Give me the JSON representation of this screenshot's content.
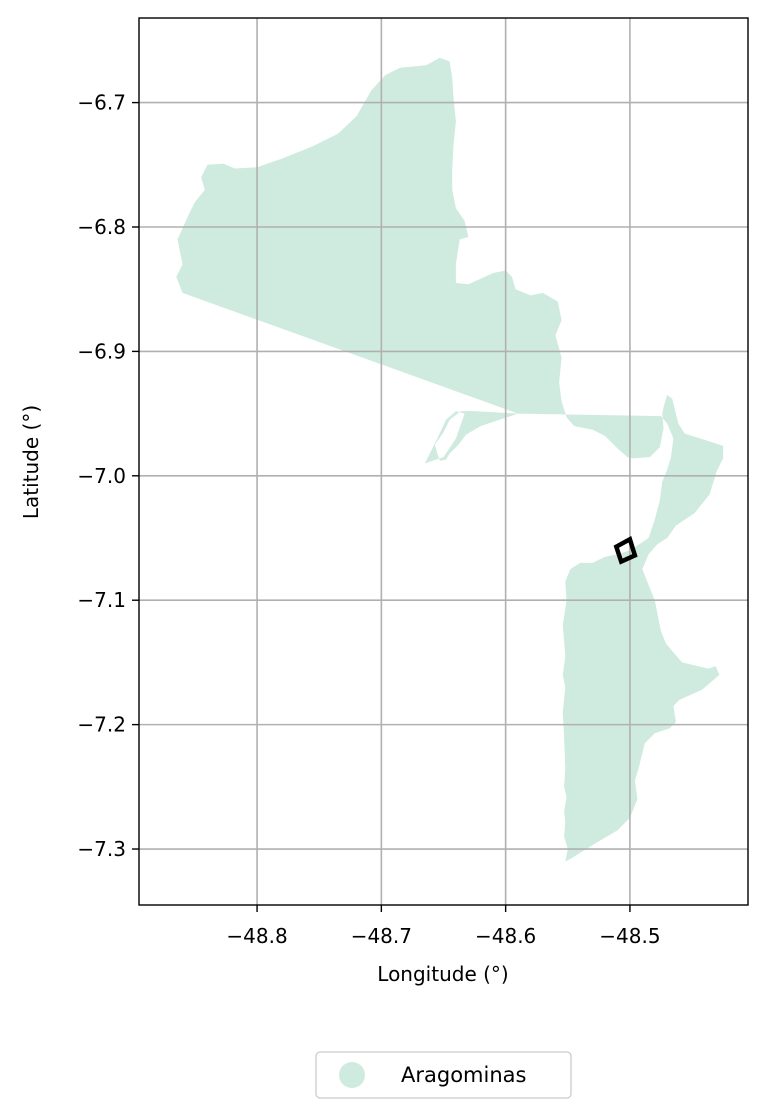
{
  "chart_data": {
    "type": "map",
    "xlabel": "Longitude (°)",
    "ylabel": "Latitude (°)",
    "xlim": [
      -48.895,
      -48.405
    ],
    "ylim": [
      -7.345,
      -6.632
    ],
    "x_ticks": [
      -48.8,
      -48.7,
      -48.6,
      -48.5
    ],
    "y_ticks": [
      -6.7,
      -6.8,
      -6.9,
      -7.0,
      -7.1,
      -7.2,
      -7.3
    ],
    "x_tick_labels": [
      "−48.8",
      "−48.7",
      "−48.6",
      "−48.5"
    ],
    "y_tick_labels": [
      "−6.7",
      "−6.8",
      "−6.9",
      "−7.0",
      "−7.1",
      "−7.2",
      "−7.3"
    ],
    "grid": true,
    "legend_position": "bottom-center",
    "region": {
      "name": "Aragominas",
      "color": "#cfebdf",
      "boundary": [
        [
          -48.86,
          -6.853
        ],
        [
          -48.865,
          -6.84
        ],
        [
          -48.86,
          -6.83
        ],
        [
          -48.864,
          -6.81
        ],
        [
          -48.855,
          -6.79
        ],
        [
          -48.85,
          -6.78
        ],
        [
          -48.842,
          -6.77
        ],
        [
          -48.845,
          -6.76
        ],
        [
          -48.84,
          -6.75
        ],
        [
          -48.827,
          -6.749
        ],
        [
          -48.818,
          -6.753
        ],
        [
          -48.8,
          -6.752
        ],
        [
          -48.78,
          -6.745
        ],
        [
          -48.755,
          -6.735
        ],
        [
          -48.735,
          -6.725
        ],
        [
          -48.72,
          -6.711
        ],
        [
          -48.708,
          -6.69
        ],
        [
          -48.697,
          -6.678
        ],
        [
          -48.685,
          -6.672
        ],
        [
          -48.664,
          -6.67
        ],
        [
          -48.653,
          -6.664
        ],
        [
          -48.645,
          -6.667
        ],
        [
          -48.643,
          -6.68
        ],
        [
          -48.642,
          -6.695
        ],
        [
          -48.64,
          -6.715
        ],
        [
          -48.642,
          -6.735
        ],
        [
          -48.643,
          -6.755
        ],
        [
          -48.643,
          -6.77
        ],
        [
          -48.64,
          -6.785
        ],
        [
          -48.633,
          -6.795
        ],
        [
          -48.63,
          -6.808
        ],
        [
          -48.637,
          -6.81
        ],
        [
          -48.64,
          -6.83
        ],
        [
          -48.64,
          -6.845
        ],
        [
          -48.63,
          -6.846
        ],
        [
          -48.61,
          -6.837
        ],
        [
          -48.6,
          -6.835
        ],
        [
          -48.595,
          -6.84
        ],
        [
          -48.592,
          -6.85
        ],
        [
          -48.58,
          -6.855
        ],
        [
          -48.57,
          -6.853
        ],
        [
          -48.558,
          -6.86
        ],
        [
          -48.555,
          -6.875
        ],
        [
          -48.56,
          -6.887
        ],
        [
          -48.555,
          -6.905
        ],
        [
          -48.557,
          -6.925
        ],
        [
          -48.555,
          -6.94
        ],
        [
          -48.551,
          -6.953
        ],
        [
          -48.545,
          -6.96
        ],
        [
          -48.53,
          -6.963
        ],
        [
          -48.52,
          -6.968
        ],
        [
          -48.51,
          -6.978
        ],
        [
          -48.502,
          -6.985
        ],
        [
          -48.497,
          -6.986
        ],
        [
          -48.484,
          -6.985
        ],
        [
          -48.476,
          -6.977
        ],
        [
          -48.473,
          -6.962
        ],
        [
          -48.474,
          -6.95
        ],
        [
          -48.473,
          -6.945
        ],
        [
          -48.47,
          -6.935
        ],
        [
          -48.466,
          -6.938
        ],
        [
          -48.461,
          -6.958
        ],
        [
          -48.456,
          -6.966
        ],
        [
          -48.437,
          -6.972
        ],
        [
          -48.425,
          -6.976
        ],
        [
          -48.425,
          -6.986
        ],
        [
          -48.43,
          -6.996
        ],
        [
          -48.436,
          -7.015
        ],
        [
          -48.448,
          -7.03
        ],
        [
          -48.463,
          -7.04
        ],
        [
          -48.47,
          -7.05
        ],
        [
          -48.478,
          -7.055
        ],
        [
          -48.485,
          -7.063
        ],
        [
          -48.49,
          -7.075
        ],
        [
          -48.485,
          -7.088
        ],
        [
          -48.48,
          -7.1
        ],
        [
          -48.477,
          -7.115
        ],
        [
          -48.475,
          -7.125
        ],
        [
          -48.471,
          -7.135
        ],
        [
          -48.458,
          -7.15
        ],
        [
          -48.437,
          -7.155
        ],
        [
          -48.431,
          -7.153
        ],
        [
          -48.428,
          -7.16
        ],
        [
          -48.442,
          -7.172
        ],
        [
          -48.46,
          -7.18
        ],
        [
          -48.465,
          -7.185
        ],
        [
          -48.463,
          -7.198
        ],
        [
          -48.468,
          -7.203
        ],
        [
          -48.48,
          -7.207
        ],
        [
          -48.488,
          -7.215
        ],
        [
          -48.493,
          -7.235
        ],
        [
          -48.496,
          -7.245
        ],
        [
          -48.494,
          -7.26
        ],
        [
          -48.5,
          -7.275
        ],
        [
          -48.51,
          -7.285
        ],
        [
          -48.527,
          -7.295
        ],
        [
          -48.548,
          -7.308
        ],
        [
          -48.552,
          -7.31
        ],
        [
          -48.55,
          -7.3
        ],
        [
          -48.553,
          -7.29
        ],
        [
          -48.552,
          -7.278
        ],
        [
          -48.553,
          -7.27
        ],
        [
          -48.551,
          -7.258
        ],
        [
          -48.553,
          -7.25
        ],
        [
          -48.552,
          -7.235
        ],
        [
          -48.553,
          -7.21
        ],
        [
          -48.554,
          -7.19
        ],
        [
          -48.552,
          -7.17
        ],
        [
          -48.554,
          -7.16
        ],
        [
          -48.552,
          -7.145
        ],
        [
          -48.554,
          -7.12
        ],
        [
          -48.551,
          -7.1
        ],
        [
          -48.552,
          -7.085
        ],
        [
          -48.548,
          -7.075
        ],
        [
          -48.54,
          -7.07
        ],
        [
          -48.53,
          -7.07
        ],
        [
          -48.52,
          -7.065
        ],
        [
          -48.51,
          -7.063
        ],
        [
          -48.5,
          -7.06
        ],
        [
          -48.485,
          -7.05
        ],
        [
          -48.48,
          -7.035
        ],
        [
          -48.476,
          -7.02
        ],
        [
          -48.474,
          -7.005
        ],
        [
          -48.47,
          -6.995
        ],
        [
          -48.467,
          -6.985
        ],
        [
          -48.465,
          -6.97
        ],
        [
          -48.47,
          -6.958
        ],
        [
          -48.475,
          -6.952
        ],
        [
          -48.59,
          -6.95
        ],
        [
          -48.605,
          -6.955
        ],
        [
          -48.62,
          -6.96
        ],
        [
          -48.632,
          -6.967
        ],
        [
          -48.638,
          -6.975
        ],
        [
          -48.645,
          -6.982
        ],
        [
          -48.648,
          -6.987
        ],
        [
          -48.653,
          -6.988
        ],
        [
          -48.655,
          -6.982
        ],
        [
          -48.657,
          -6.975
        ],
        [
          -48.65,
          -6.965
        ],
        [
          -48.645,
          -6.955
        ],
        [
          -48.636,
          -6.948
        ],
        [
          -48.625,
          -6.948
        ],
        [
          -48.608,
          -6.949
        ],
        [
          -48.59,
          -6.95
        ],
        [
          -48.86,
          -6.853
        ]
      ],
      "holes": [
        [
          [
            -48.665,
            -6.99
          ],
          [
            -48.655,
            -6.97
          ],
          [
            -48.648,
            -6.955
          ],
          [
            -48.64,
            -6.948
          ],
          [
            -48.633,
            -6.95
          ],
          [
            -48.64,
            -6.97
          ],
          [
            -48.65,
            -6.985
          ]
        ]
      ]
    },
    "marker": {
      "type": "rotated-square",
      "outline_color": "#000000",
      "corners": [
        [
          -48.511,
          -7.057
        ],
        [
          -48.5,
          -7.051
        ],
        [
          -48.496,
          -7.064
        ],
        [
          -48.507,
          -7.069
        ]
      ]
    },
    "legend": {
      "entries": [
        {
          "label": "Aragominas",
          "color": "#cfebdf"
        }
      ]
    }
  }
}
